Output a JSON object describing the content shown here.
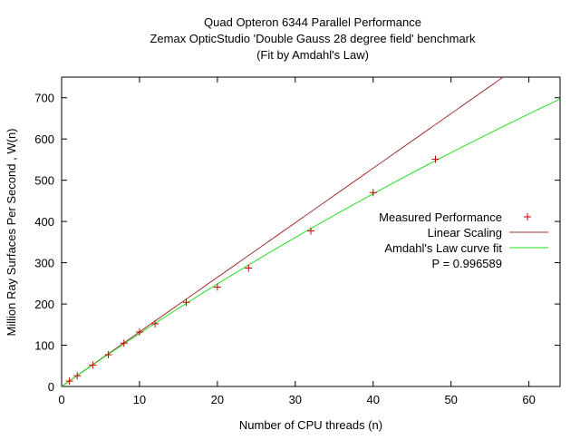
{
  "chart_data": {
    "type": "scatter",
    "title_lines": [
      "Quad Opteron 6344 Parallel Performance",
      "Zemax OpticStudio 'Double Gauss 28 degree field' benchmark",
      "(Fit by Amdahl's Law)"
    ],
    "xlabel": "Number of CPU threads (n)",
    "ylabel": "Million Ray Surfaces Per Second , W(n)",
    "xlim": [
      0,
      64
    ],
    "ylim": [
      0,
      750
    ],
    "xticks": [
      0,
      10,
      20,
      30,
      40,
      50,
      60
    ],
    "yticks": [
      0,
      100,
      200,
      300,
      400,
      500,
      600,
      700
    ],
    "grid": false,
    "legend_position": "right",
    "series": [
      {
        "name": "Measured Performance",
        "kind": "points",
        "color": "#cc0000",
        "x": [
          1,
          2,
          4,
          6,
          8,
          10,
          12,
          16,
          20,
          24,
          32,
          40,
          48
        ],
        "y": [
          13,
          26,
          52,
          77,
          105,
          132,
          152,
          204,
          241,
          287,
          377,
          470,
          551
        ]
      },
      {
        "name": "Linear Scaling",
        "kind": "line",
        "color": "#a03030",
        "w1": 13.23
      },
      {
        "name": "Amdahl's Law curve fit",
        "kind": "line",
        "color": "#22dd22",
        "w1": 13.23,
        "P": 0.996589
      }
    ],
    "annotation": "P = 0.996589"
  }
}
